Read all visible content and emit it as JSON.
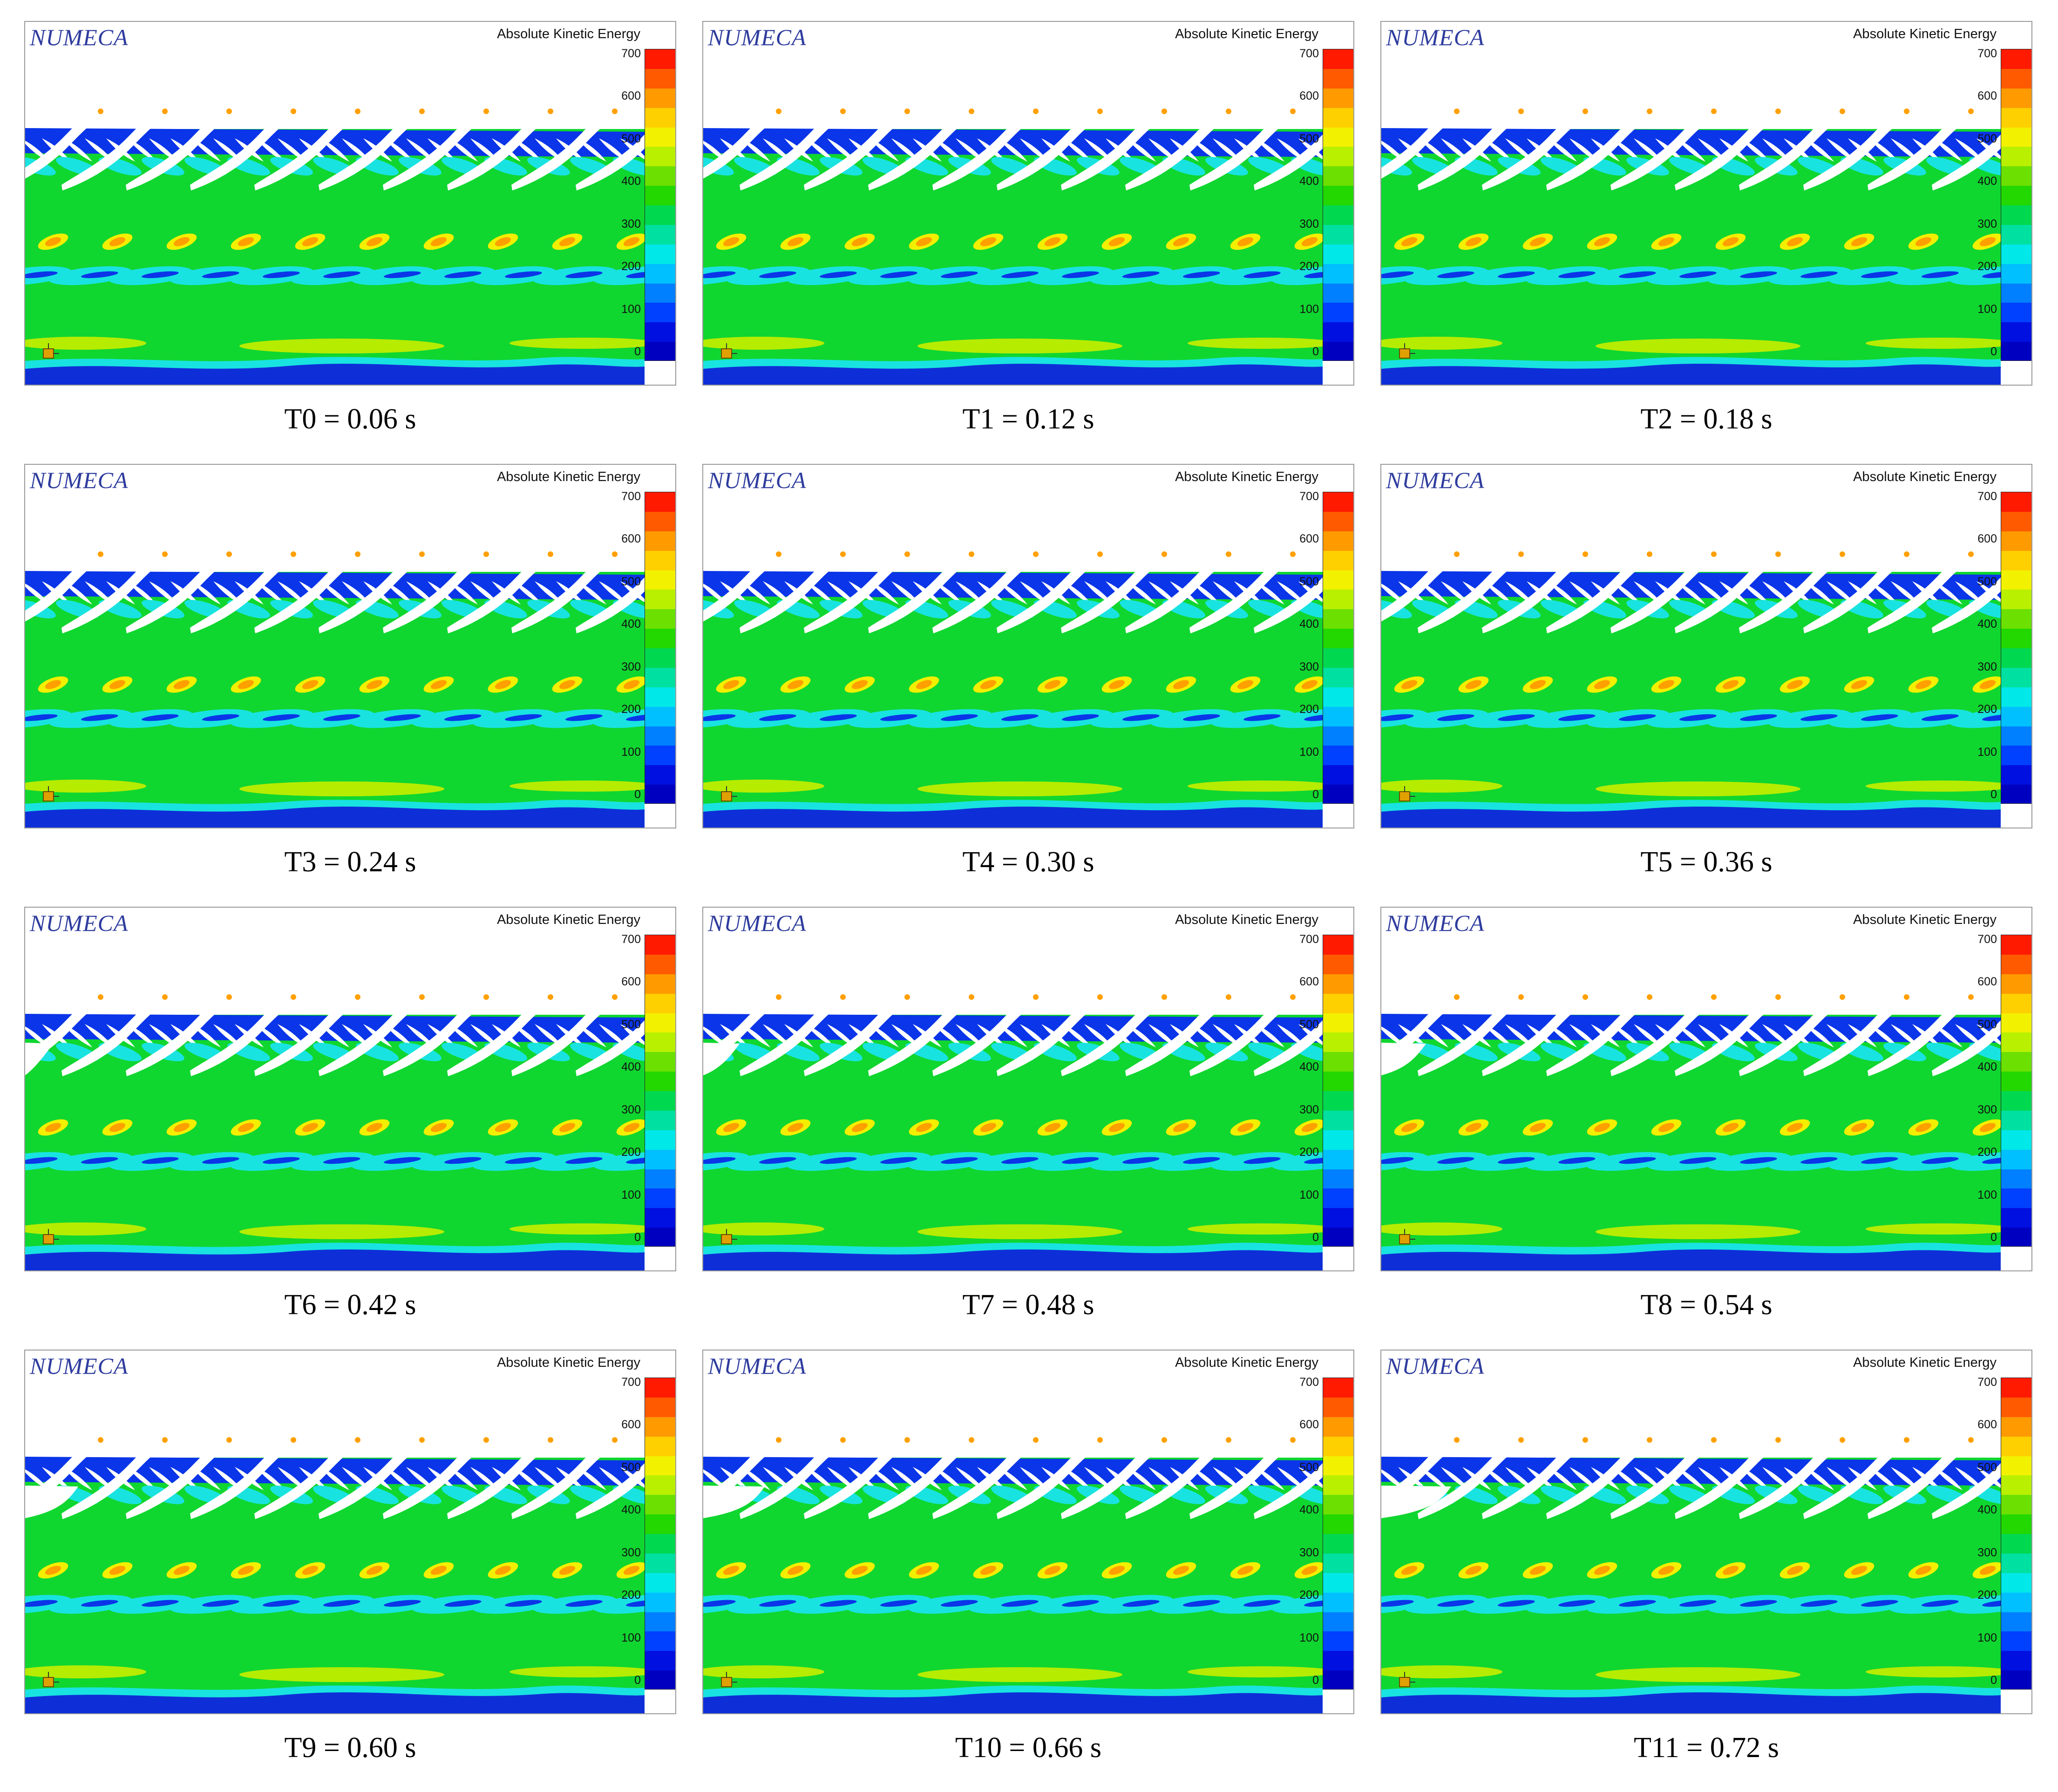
{
  "logo_text": "NUMECA",
  "colorbar_title": "Absolute Kinetic Energy",
  "colorbar_ticks": [
    "700",
    "600",
    "500",
    "400",
    "300",
    "200",
    "100",
    "0"
  ],
  "colorbar_colors": [
    "#ff1a00",
    "#ff5a00",
    "#ff9a00",
    "#ffd000",
    "#f2f200",
    "#b8f000",
    "#6ce000",
    "#22d800",
    "#00d850",
    "#00e0a0",
    "#00e8e8",
    "#00c0ff",
    "#0080ff",
    "#0040ff",
    "#0010e0",
    "#0000c0"
  ],
  "field_colors": {
    "band_blue": "#0a35e8",
    "cyan": "#19e3e0",
    "green": "#10d630",
    "lime": "#b6ec00",
    "yellow": "#f3ef00",
    "orange": "#ffa000",
    "dark_blue": "#0e2fd8"
  },
  "panels": [
    {
      "caption": "T0 = 0.06 s"
    },
    {
      "caption": "T1 = 0.12 s"
    },
    {
      "caption": "T2 = 0.18 s"
    },
    {
      "caption": "T3 = 0.24 s"
    },
    {
      "caption": "T4 = 0.30 s"
    },
    {
      "caption": "T5 = 0.36 s"
    },
    {
      "caption": "T6 = 0.42 s"
    },
    {
      "caption": "T7 = 0.48 s"
    },
    {
      "caption": "T8 = 0.54 s"
    },
    {
      "caption": "T9 = 0.60 s"
    },
    {
      "caption": "T10 = 0.66 s"
    },
    {
      "caption": "T11 = 0.72 s"
    }
  ]
}
